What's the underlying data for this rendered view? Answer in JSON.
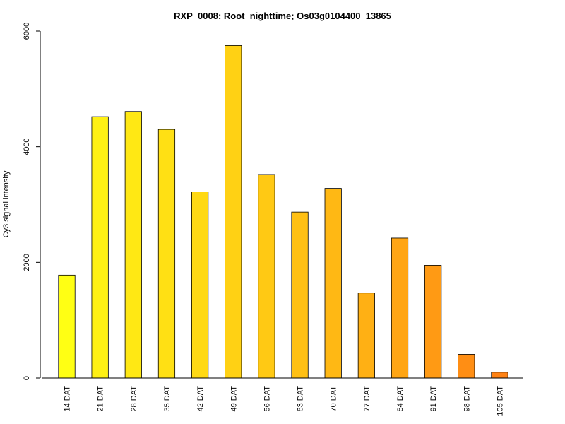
{
  "chart_data": {
    "type": "bar",
    "title": "RXP_0008: Root_nighttime; Os03g0104400_13865",
    "xlabel": "",
    "ylabel": "Cy3 signal intensity",
    "ylim": [
      0,
      6000
    ],
    "yticks": [
      0,
      2000,
      4000,
      6000
    ],
    "categories": [
      "14 DAT",
      "21 DAT",
      "28 DAT",
      "35 DAT",
      "42 DAT",
      "49 DAT",
      "56 DAT",
      "63 DAT",
      "70 DAT",
      "77 DAT",
      "84 DAT",
      "91 DAT",
      "98 DAT",
      "105 DAT"
    ],
    "values": [
      1780,
      4520,
      4610,
      4300,
      3220,
      5750,
      3520,
      2870,
      3280,
      1470,
      2420,
      1950,
      410,
      100
    ],
    "colors": [
      "#FFFF14",
      "#FFF014",
      "#FFE814",
      "#FFE014",
      "#FFD914",
      "#FFD114",
      "#FFC914",
      "#FFC014",
      "#FFB814",
      "#FFB014",
      "#FFA514",
      "#FF9A14",
      "#FF8E14",
      "#FF8214"
    ],
    "grid": false,
    "legend": "none"
  }
}
